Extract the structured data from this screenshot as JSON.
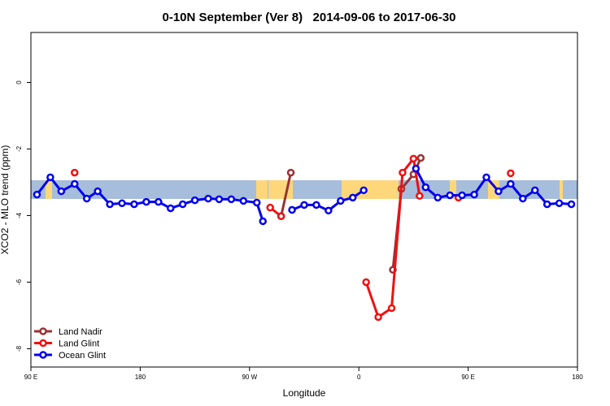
{
  "chart_data": {
    "type": "line",
    "title": "0-10N September (Ver 8)   2014-09-06 to 2017-06-30",
    "x_label": "Longitude",
    "y_label": "XCO2 - MLO trend (ppm)",
    "xlim": [
      90,
      540
    ],
    "ylim": [
      -8.55,
      1.5
    ],
    "xticks": [
      {
        "value": 90,
        "label": "90 E"
      },
      180,
      {
        "value": 270,
        "label": "90 W"
      },
      {
        "value": 360,
        "label": "0"
      },
      {
        "value": 450,
        "label": "90 E"
      },
      {
        "value": 540,
        "label": "180"
      }
    ],
    "yticks": [
      0,
      -2,
      -4,
      -6,
      -8
    ],
    "legend": "bottom-left",
    "series": [
      {
        "name": "Land Nadir",
        "color": "#993333",
        "x": [
          296,
          304,
          null,
          388,
          395,
          405,
          411
        ],
        "values": [
          -4.02,
          -2.71,
          null,
          -5.63,
          -3.2,
          -2.76,
          -2.27
        ]
      },
      {
        "name": "Land Glint",
        "color": "#ee1111",
        "x": [
          126,
          null,
          287,
          296,
          null,
          366,
          376,
          387,
          396,
          405,
          410,
          null,
          442,
          null,
          485
        ],
        "values": [
          -2.71,
          null,
          -3.76,
          -4.02,
          null,
          -6.0,
          -7.05,
          -6.78,
          -2.71,
          -2.29,
          -3.41,
          null,
          -3.46,
          null,
          -2.73
        ]
      },
      {
        "name": "Ocean Glint",
        "color": "#0000ee",
        "x": [
          95,
          106,
          115,
          126,
          136,
          145,
          155,
          165,
          175,
          185,
          195,
          205,
          215,
          225,
          236,
          245,
          255,
          265,
          276,
          281,
          null,
          305,
          315,
          325,
          335,
          345,
          355,
          364,
          null,
          407,
          415,
          425,
          435,
          445,
          455,
          465,
          475,
          485,
          495,
          505,
          515,
          525,
          535
        ],
        "values": [
          -3.37,
          -2.85,
          -3.27,
          -3.05,
          -3.49,
          -3.27,
          -3.66,
          -3.63,
          -3.66,
          -3.59,
          -3.59,
          -3.78,
          -3.66,
          -3.54,
          -3.49,
          -3.51,
          -3.51,
          -3.56,
          -3.61,
          -4.17,
          null,
          -3.83,
          -3.68,
          -3.68,
          -3.85,
          -3.56,
          -3.46,
          -3.24,
          null,
          -2.59,
          -3.15,
          -3.46,
          -3.39,
          -3.39,
          -3.37,
          -2.85,
          -3.27,
          -3.05,
          -3.49,
          -3.24,
          -3.66,
          -3.63,
          -3.66
        ]
      }
    ]
  }
}
